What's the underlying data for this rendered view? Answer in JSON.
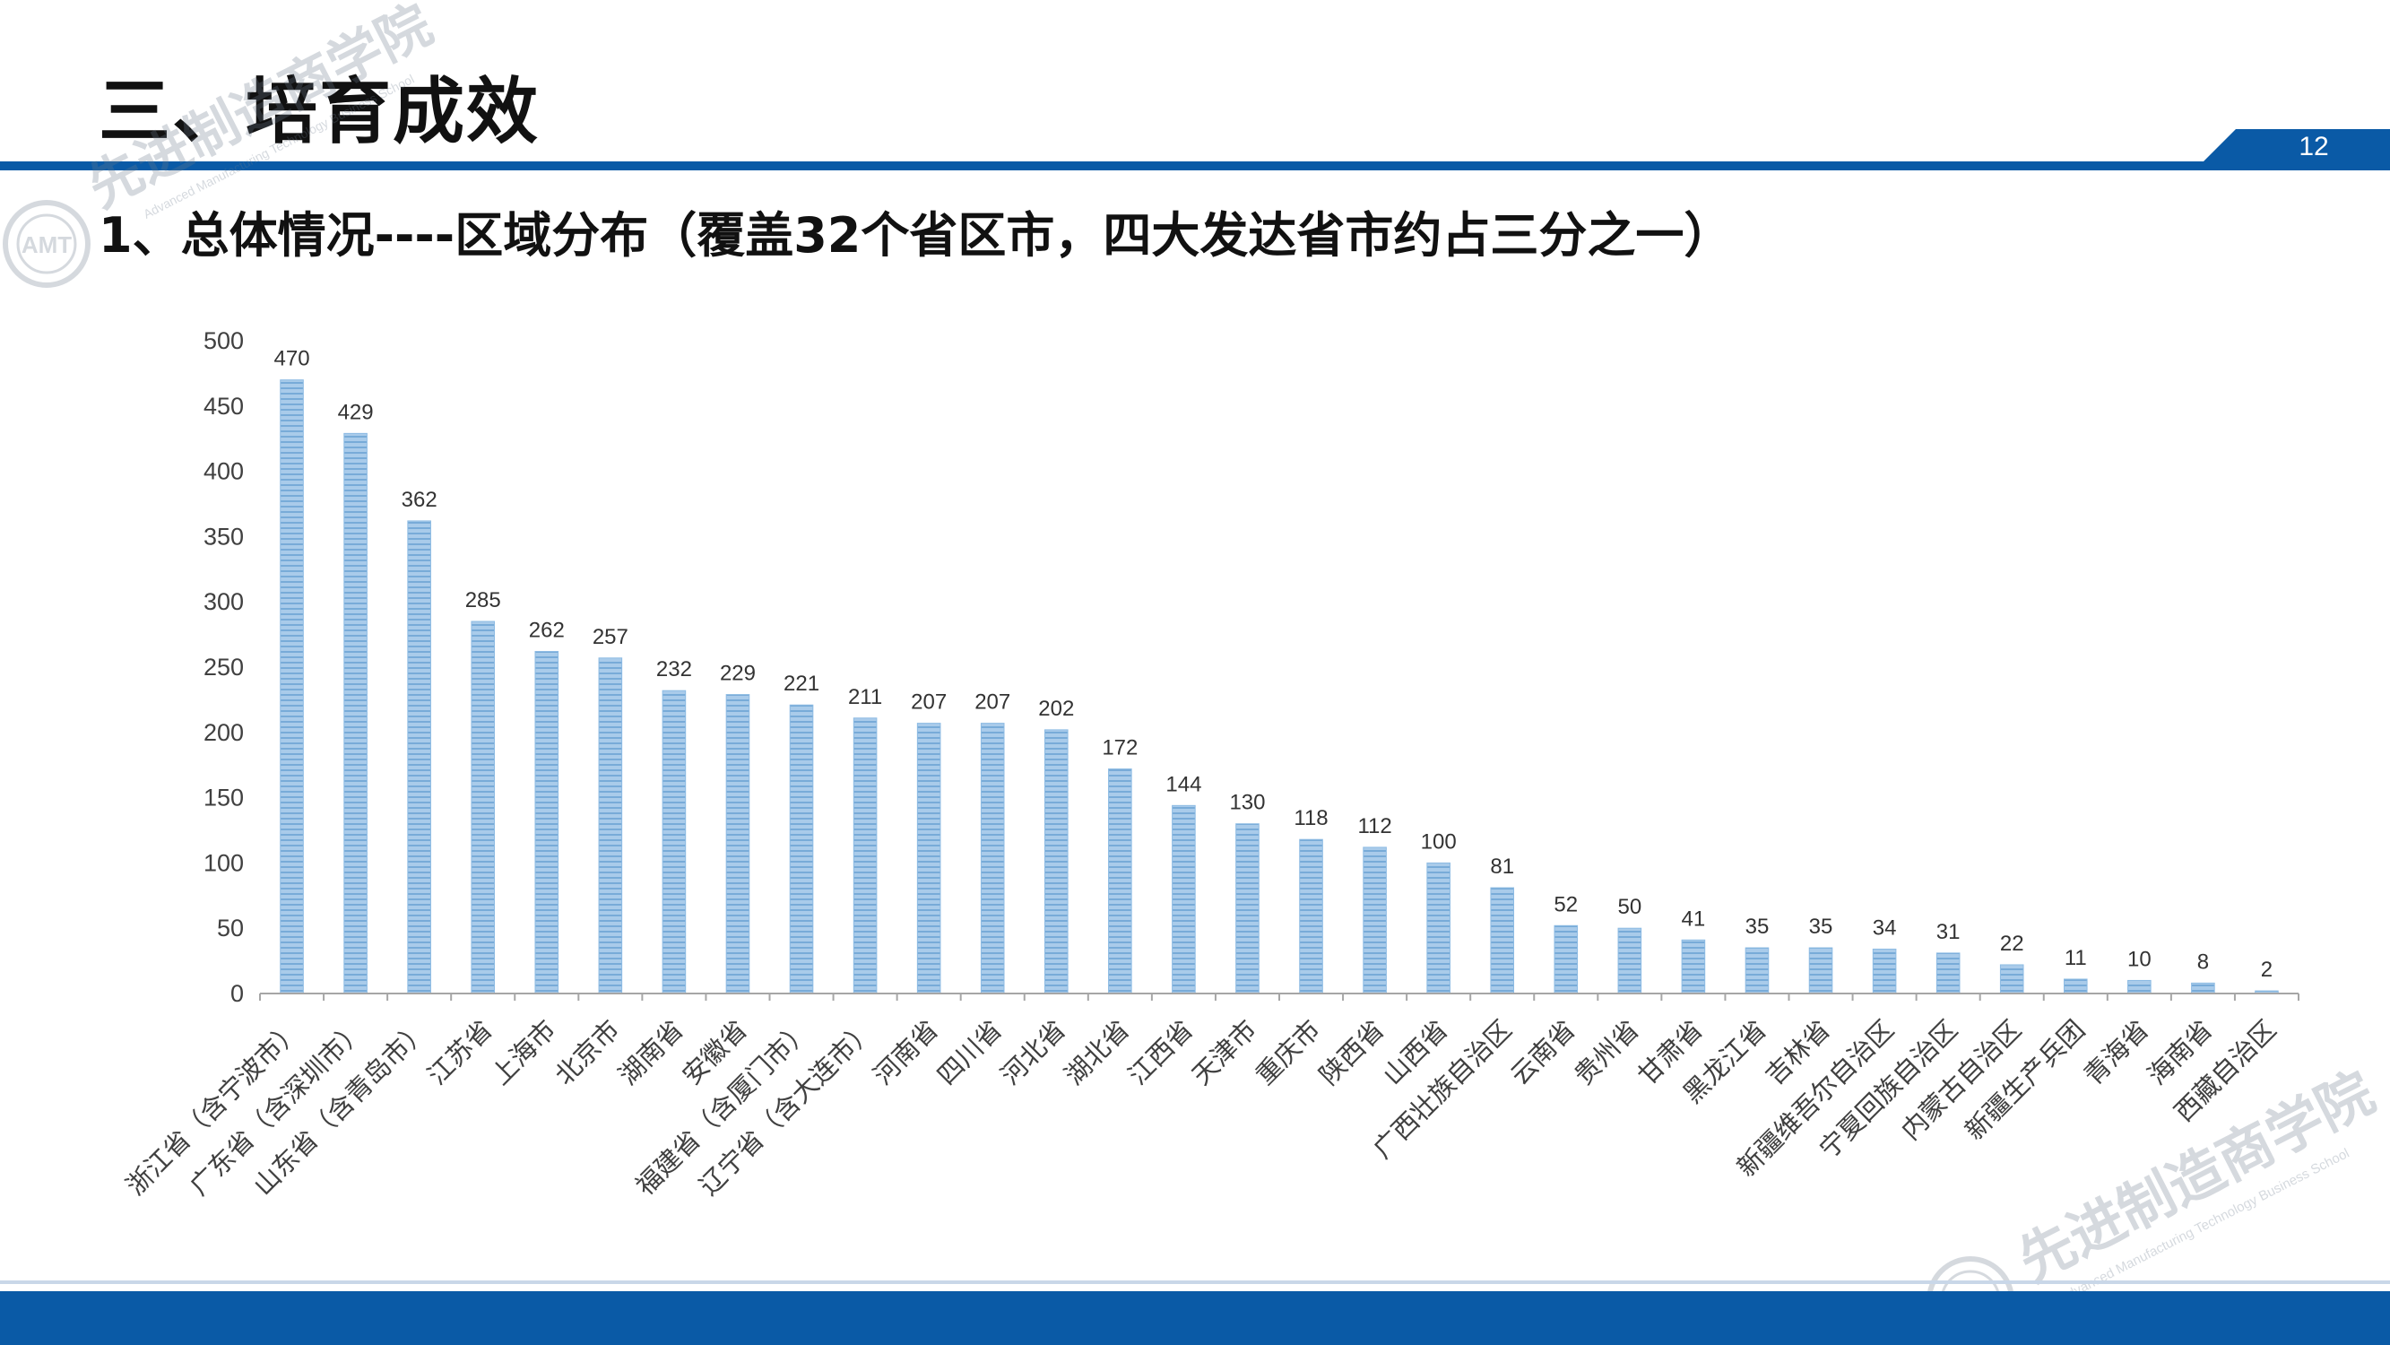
{
  "slide": {
    "title": "三、培育成效",
    "subtitle": "1、总体情况----区域分布（覆盖32个省区市，四大发达省市约占三分之一）",
    "page_number": "12"
  },
  "watermark": {
    "name": "先进制造商学院",
    "english": "Advanced Manufacturing Technology Business School",
    "emblem_text": "AMT"
  },
  "colors": {
    "primary_blue": "#0a5aa6",
    "bar_fill": "#9cc3e6",
    "bar_stripe": "#6aa1d2"
  },
  "chart_data": {
    "type": "bar",
    "categories": [
      "浙江省（含宁波市）",
      "广东省（含深圳市）",
      "山东省（含青岛市）",
      "江苏省",
      "上海市",
      "北京市",
      "湖南省",
      "安徽省",
      "福建省（含厦门市）",
      "辽宁省（含大连市）",
      "河南省",
      "四川省",
      "河北省",
      "湖北省",
      "江西省",
      "天津市",
      "重庆市",
      "陕西省",
      "山西省",
      "广西壮族自治区",
      "云南省",
      "贵州省",
      "甘肃省",
      "黑龙江省",
      "吉林省",
      "新疆维吾尔自治区",
      "宁夏回族自治区",
      "内蒙古自治区",
      "新疆生产兵团",
      "青海省",
      "海南省",
      "西藏自治区"
    ],
    "values": [
      470,
      429,
      362,
      285,
      262,
      257,
      232,
      229,
      221,
      211,
      207,
      207,
      202,
      172,
      144,
      130,
      118,
      112,
      100,
      81,
      52,
      50,
      41,
      35,
      35,
      34,
      31,
      22,
      11,
      10,
      8,
      2
    ],
    "y_ticks": [
      0,
      50,
      100,
      150,
      200,
      250,
      300,
      350,
      400,
      450,
      500
    ],
    "ylim": [
      0,
      500
    ],
    "grid": false,
    "legend": "none",
    "data_labels": true
  }
}
